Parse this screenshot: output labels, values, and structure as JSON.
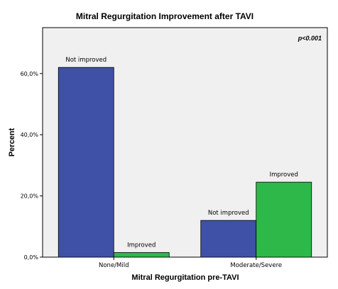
{
  "chart_data": {
    "type": "bar",
    "title": "Mitral Regurgitation Improvement after TAVI",
    "xlabel": "Mitral Regurgitation pre-TAVI",
    "ylabel": "Percent",
    "categories": [
      "None/Mild",
      "Moderate/Severe"
    ],
    "series": [
      {
        "name": "Not improved",
        "color": "#3f51a7",
        "values": [
          62.0,
          12.0
        ],
        "labels": [
          "Not improved",
          "Not improved"
        ]
      },
      {
        "name": "Improved",
        "color": "#2fb84a",
        "values": [
          1.5,
          24.5
        ],
        "labels": [
          "Improved",
          "Improved"
        ]
      }
    ],
    "ylim": [
      0,
      75
    ],
    "yticks": [
      0,
      20,
      40,
      60
    ],
    "ytick_labels": [
      "0,0%",
      "20,0%",
      "40,0%",
      "60,0%"
    ],
    "annotation": "p<0.001",
    "plot_background": "#f0f0f0",
    "grid": false
  }
}
